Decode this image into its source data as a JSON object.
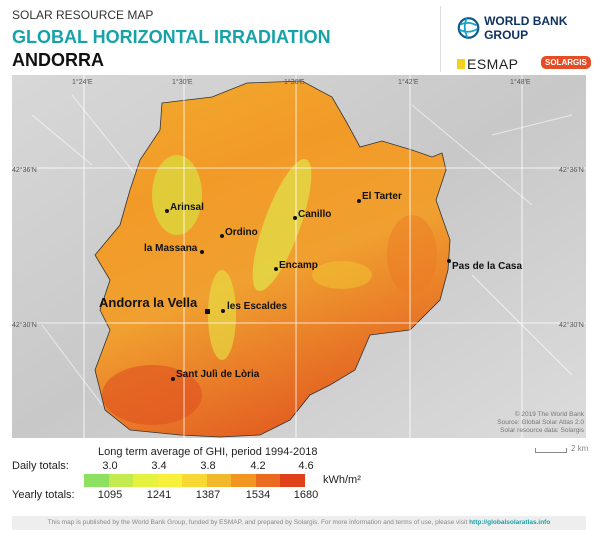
{
  "header": {
    "pretitle": "SOLAR RESOURCE MAP",
    "title": "GLOBAL HORIZONTAL IRRADIATION",
    "country": "ANDORRA"
  },
  "logos": {
    "wbg": "WORLD BANK GROUP",
    "esmap": "ESMAP",
    "solargis": "SOLARGIS"
  },
  "map": {
    "lon_labels": [
      "1°24'E",
      "1°30'E",
      "1°36'E",
      "1°42'E",
      "1°48'E"
    ],
    "lat_labels": [
      "42°36'N",
      "42°30'N"
    ],
    "towns": [
      {
        "name": "Arinsal"
      },
      {
        "name": "Ordino"
      },
      {
        "name": "Canillo"
      },
      {
        "name": "El Tarter"
      },
      {
        "name": "la Massana"
      },
      {
        "name": "Encamp"
      },
      {
        "name": "Pas de la Casa"
      },
      {
        "name": "Andorra la Vella"
      },
      {
        "name": "les Escaldes"
      },
      {
        "name": "Sant Julì de Lòria"
      }
    ],
    "attribution": [
      "© 2019 The World Bank",
      "Source: Global Solar Atlas 2.0",
      "Solar resource data: Solargis"
    ],
    "scale": "2 km"
  },
  "legend": {
    "title": "Long term average of GHI, period 1994-2018",
    "daily_label": "Daily totals:",
    "yearly_label": "Yearly totals:",
    "daily_ticks": [
      "3.0",
      "3.4",
      "3.8",
      "4.2",
      "4.6"
    ],
    "yearly_ticks": [
      "1095",
      "1241",
      "1387",
      "1534",
      "1680"
    ],
    "unit": "kWh/m²",
    "colors": [
      "#8ee060",
      "#c3ea4e",
      "#e6f240",
      "#f8f03a",
      "#f8d832",
      "#f2b82c",
      "#f39522",
      "#ea6a20",
      "#e0401a"
    ]
  },
  "footer": {
    "text": "This map is published by the World Bank Group, funded by ESMAP, and prepared by Solargis. For more information and terms of use, please visit ",
    "link": "http://globalsolaratlas.info"
  }
}
